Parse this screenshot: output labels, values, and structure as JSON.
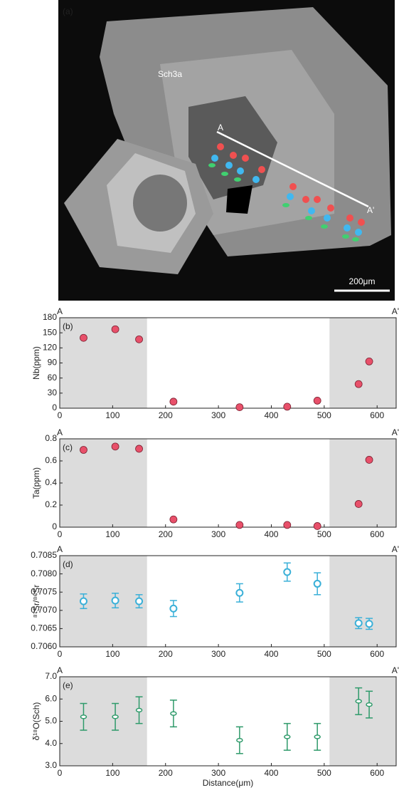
{
  "image_panel": {
    "label": "(a)",
    "sample": "Sch3a",
    "start": "A",
    "end": "A'",
    "scale": "200μm"
  },
  "chart_data": [
    {
      "type": "scatter",
      "panel_label": "(b)",
      "ylabel": "Nb(ppm)",
      "ends": [
        "A",
        "A'"
      ],
      "marker": "filled",
      "color": "#e8506a",
      "x": [
        45,
        105,
        150,
        215,
        340,
        430,
        487,
        565,
        585
      ],
      "values": [
        140,
        157,
        137,
        13,
        2,
        3,
        15,
        48,
        93
      ],
      "xlim": [
        0,
        636
      ],
      "xticks": [
        0,
        100,
        200,
        300,
        400,
        500,
        600
      ],
      "ylim": [
        0,
        180
      ],
      "yticks": [
        0,
        30,
        60,
        90,
        120,
        150,
        180
      ],
      "shaded": [
        [
          0,
          165
        ],
        [
          510,
          636
        ]
      ]
    },
    {
      "type": "scatter",
      "panel_label": "(c)",
      "ylabel": "Ta(ppm)",
      "ends": [
        "A",
        "A'"
      ],
      "marker": "filled",
      "color": "#e8506a",
      "x": [
        45,
        105,
        150,
        215,
        340,
        430,
        487,
        565,
        585
      ],
      "values": [
        0.7,
        0.73,
        0.71,
        0.07,
        0.02,
        0.02,
        0.01,
        0.21,
        0.61
      ],
      "xlim": [
        0,
        636
      ],
      "xticks": [
        0,
        100,
        200,
        300,
        400,
        500,
        600
      ],
      "ylim": [
        0,
        0.8
      ],
      "yticks": [
        0,
        0.2,
        0.4,
        0.6,
        0.8
      ],
      "shaded": [
        [
          0,
          165
        ],
        [
          510,
          636
        ]
      ]
    },
    {
      "type": "scatter",
      "panel_label": "(d)",
      "ylabel": "⁸⁷Sr/⁸⁶Sr",
      "ends": [
        "A",
        "A'"
      ],
      "marker": "open",
      "color": "#3ab0d8",
      "x": [
        45,
        105,
        150,
        215,
        340,
        430,
        487,
        565,
        585
      ],
      "values": [
        0.70725,
        0.70727,
        0.70725,
        0.70705,
        0.70748,
        0.70805,
        0.70773,
        0.70665,
        0.70663
      ],
      "errors": [
        0.0002,
        0.0002,
        0.00018,
        0.00022,
        0.00025,
        0.00025,
        0.0003,
        0.00015,
        0.00015
      ],
      "xlim": [
        0,
        636
      ],
      "xticks": [
        0,
        100,
        200,
        300,
        400,
        500,
        600
      ],
      "ylim": [
        0.706,
        0.7085
      ],
      "yticks": [
        {
          "value": 0.706,
          "label": "0.7060"
        },
        {
          "value": 0.7065,
          "label": "0.7065"
        },
        {
          "value": 0.707,
          "label": "0.7070"
        },
        {
          "value": 0.7075,
          "label": "0.7075"
        },
        {
          "value": 0.708,
          "label": "0.7080"
        },
        {
          "value": 0.7085,
          "label": "0.7085"
        }
      ],
      "shaded": [
        [
          0,
          165
        ],
        [
          510,
          636
        ]
      ]
    },
    {
      "type": "scatter",
      "panel_label": "(e)",
      "ylabel": "δ¹⁸O(Sch)",
      "xlabel": "Distance(μm)",
      "ends": [
        "A",
        "A'"
      ],
      "marker": "dash",
      "color": "#2e9a6a",
      "x": [
        45,
        105,
        150,
        215,
        340,
        430,
        487,
        565,
        585
      ],
      "values": [
        5.2,
        5.2,
        5.5,
        5.35,
        4.15,
        4.3,
        4.3,
        5.9,
        5.75
      ],
      "errors": [
        0.6,
        0.6,
        0.6,
        0.6,
        0.6,
        0.6,
        0.6,
        0.6,
        0.6
      ],
      "xlim": [
        0,
        636
      ],
      "xticks": [
        0,
        100,
        200,
        300,
        400,
        500,
        600
      ],
      "ylim": [
        3,
        7
      ],
      "yticks": [
        {
          "value": 3,
          "label": "3.0"
        },
        {
          "value": 4,
          "label": "4.0"
        },
        {
          "value": 5,
          "label": "5.0"
        },
        {
          "value": 6,
          "label": "6.0"
        },
        {
          "value": 7,
          "label": "7.0"
        }
      ],
      "shaded": [
        [
          0,
          165
        ],
        [
          510,
          636
        ]
      ]
    }
  ]
}
